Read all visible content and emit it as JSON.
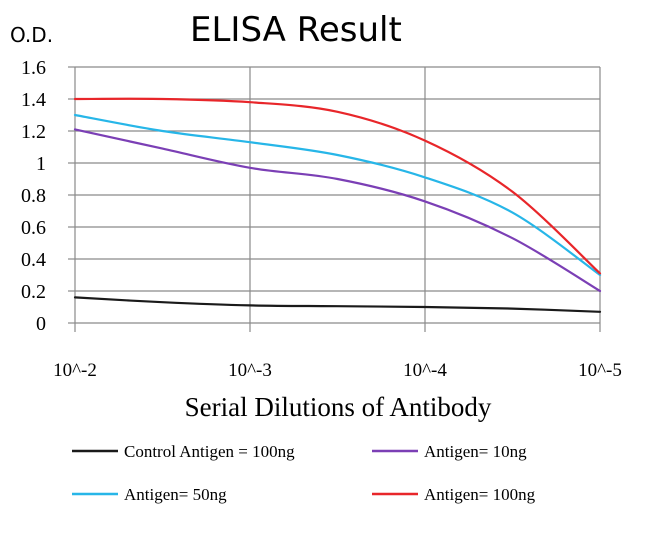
{
  "chart_data": {
    "type": "line",
    "title": "ELISA Result",
    "ylabel": "O.D.",
    "xlabel": "Serial Dilutions of Antibody",
    "categories": [
      "10^-2",
      "10^-3",
      "10^-4",
      "10^-5"
    ],
    "ylim": [
      0,
      1.6
    ],
    "yticks": [
      "0",
      "0.2",
      "0.4",
      "0.6",
      "0.8",
      "1",
      "1.2",
      "1.4",
      "1.6"
    ],
    "grid": true,
    "legend_position": "bottom",
    "series": [
      {
        "name": "Control Antigen = 100ng",
        "color": "#1a1a1a",
        "points": [
          [
            0,
            0.16
          ],
          [
            0.5,
            0.13
          ],
          [
            1,
            0.11
          ],
          [
            1.5,
            0.105
          ],
          [
            2,
            0.1
          ],
          [
            2.5,
            0.09
          ],
          [
            3,
            0.07
          ]
        ]
      },
      {
        "name": "Antigen= 10ng",
        "color": "#7b3fb5",
        "points": [
          [
            0,
            1.21
          ],
          [
            0.5,
            1.09
          ],
          [
            1,
            0.97
          ],
          [
            1.5,
            0.9
          ],
          [
            2,
            0.76
          ],
          [
            2.5,
            0.53
          ],
          [
            3,
            0.2
          ]
        ]
      },
      {
        "name": "Antigen= 50ng",
        "color": "#27b6e8",
        "points": [
          [
            0,
            1.3
          ],
          [
            0.5,
            1.2
          ],
          [
            1,
            1.13
          ],
          [
            1.5,
            1.05
          ],
          [
            2,
            0.91
          ],
          [
            2.5,
            0.69
          ],
          [
            3,
            0.3
          ]
        ]
      },
      {
        "name": "Antigen= 100ng",
        "color": "#e8262a",
        "points": [
          [
            0,
            1.4
          ],
          [
            0.5,
            1.4
          ],
          [
            1,
            1.38
          ],
          [
            1.5,
            1.32
          ],
          [
            2,
            1.14
          ],
          [
            2.5,
            0.82
          ],
          [
            3,
            0.31
          ]
        ]
      }
    ]
  }
}
